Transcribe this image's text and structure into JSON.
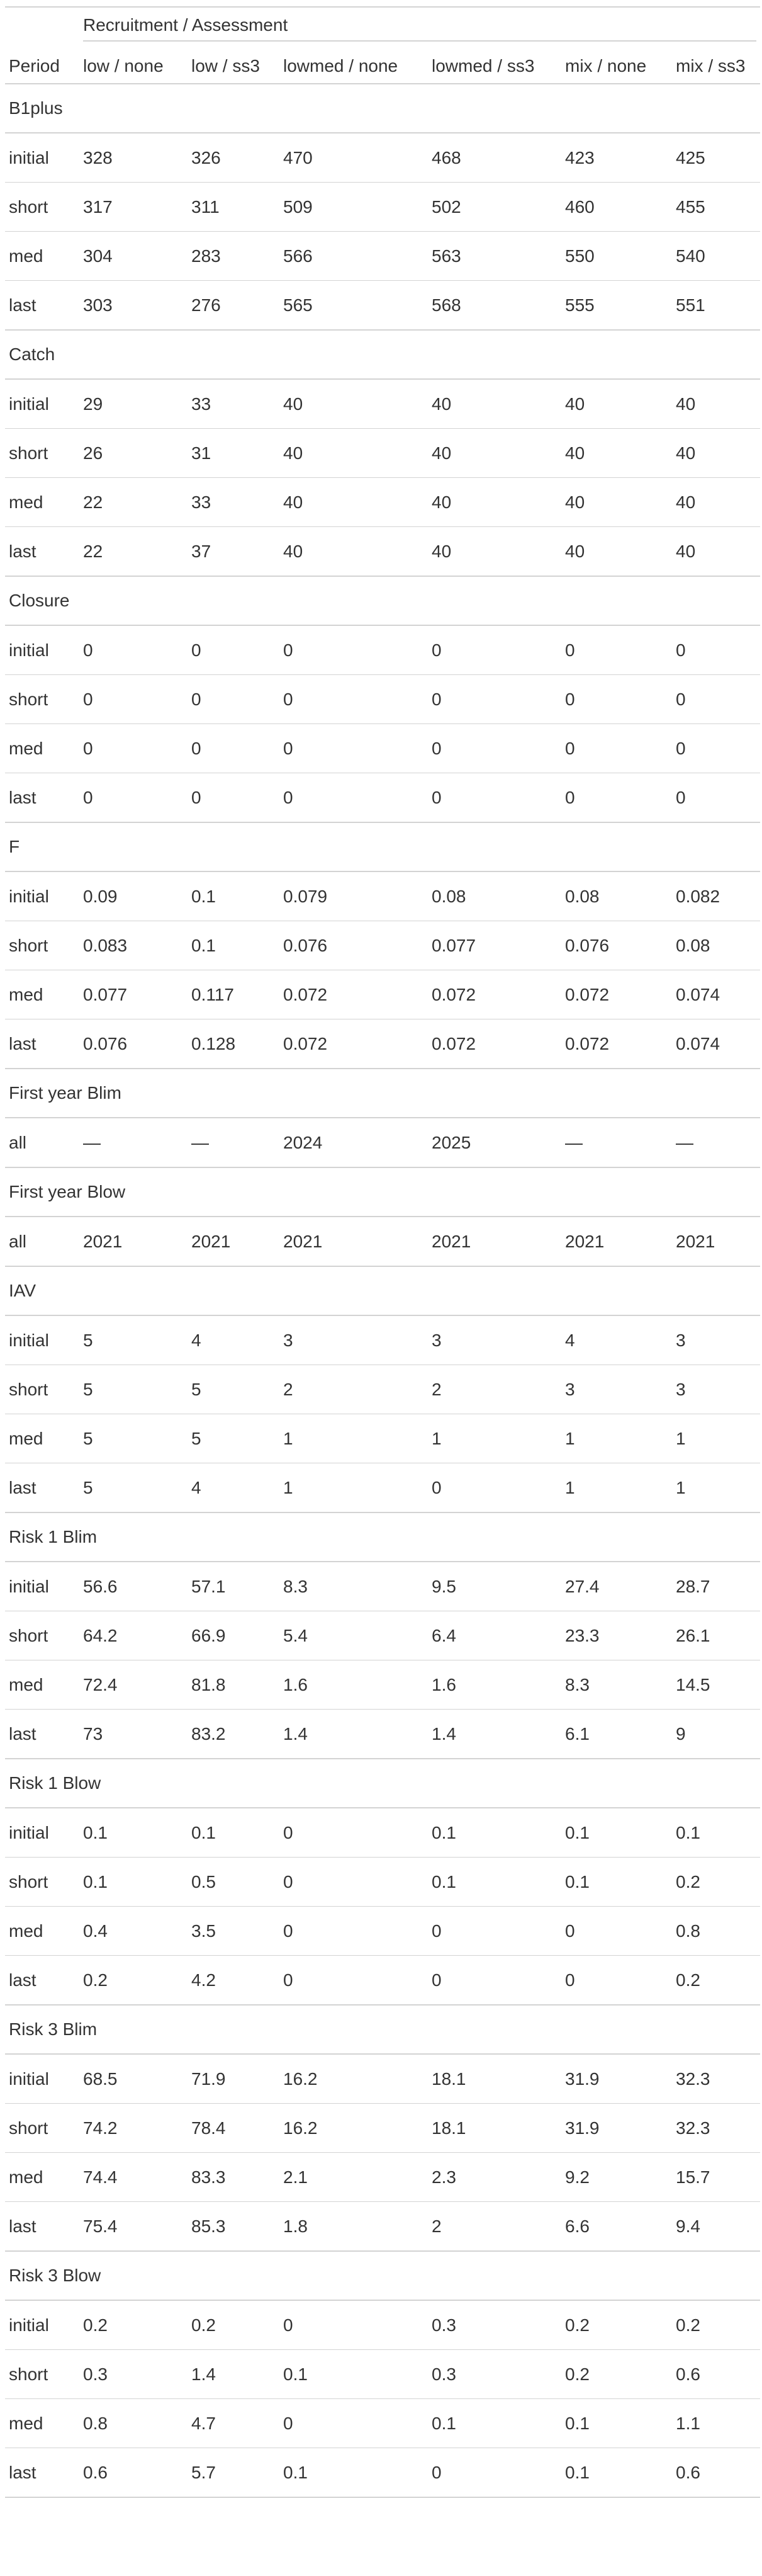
{
  "table": {
    "spanner": "Recruitment / Assessment",
    "stub_header": "Period",
    "columns": [
      "low / none",
      "low / ss3",
      "lowmed / none",
      "lowmed / ss3",
      "mix / none",
      "mix / ss3"
    ],
    "groups": [
      {
        "name": "B1plus",
        "rows": [
          {
            "label": "initial",
            "values": [
              "328",
              "326",
              "470",
              "468",
              "423",
              "425"
            ]
          },
          {
            "label": "short",
            "values": [
              "317",
              "311",
              "509",
              "502",
              "460",
              "455"
            ]
          },
          {
            "label": "med",
            "values": [
              "304",
              "283",
              "566",
              "563",
              "550",
              "540"
            ]
          },
          {
            "label": "last",
            "values": [
              "303",
              "276",
              "565",
              "568",
              "555",
              "551"
            ]
          }
        ]
      },
      {
        "name": "Catch",
        "rows": [
          {
            "label": "initial",
            "values": [
              "29",
              "33",
              "40",
              "40",
              "40",
              "40"
            ]
          },
          {
            "label": "short",
            "values": [
              "26",
              "31",
              "40",
              "40",
              "40",
              "40"
            ]
          },
          {
            "label": "med",
            "values": [
              "22",
              "33",
              "40",
              "40",
              "40",
              "40"
            ]
          },
          {
            "label": "last",
            "values": [
              "22",
              "37",
              "40",
              "40",
              "40",
              "40"
            ]
          }
        ]
      },
      {
        "name": "Closure",
        "rows": [
          {
            "label": "initial",
            "values": [
              "0",
              "0",
              "0",
              "0",
              "0",
              "0"
            ]
          },
          {
            "label": "short",
            "values": [
              "0",
              "0",
              "0",
              "0",
              "0",
              "0"
            ]
          },
          {
            "label": "med",
            "values": [
              "0",
              "0",
              "0",
              "0",
              "0",
              "0"
            ]
          },
          {
            "label": "last",
            "values": [
              "0",
              "0",
              "0",
              "0",
              "0",
              "0"
            ]
          }
        ]
      },
      {
        "name": "F",
        "rows": [
          {
            "label": "initial",
            "values": [
              "0.09",
              "0.1",
              "0.079",
              "0.08",
              "0.08",
              "0.082"
            ]
          },
          {
            "label": "short",
            "values": [
              "0.083",
              "0.1",
              "0.076",
              "0.077",
              "0.076",
              "0.08"
            ]
          },
          {
            "label": "med",
            "values": [
              "0.077",
              "0.117",
              "0.072",
              "0.072",
              "0.072",
              "0.074"
            ]
          },
          {
            "label": "last",
            "values": [
              "0.076",
              "0.128",
              "0.072",
              "0.072",
              "0.072",
              "0.074"
            ]
          }
        ]
      },
      {
        "name": "First year Blim",
        "rows": [
          {
            "label": "all",
            "values": [
              "—",
              "—",
              "2024",
              "2025",
              "—",
              "—"
            ]
          }
        ]
      },
      {
        "name": "First year Blow",
        "rows": [
          {
            "label": "all",
            "values": [
              "2021",
              "2021",
              "2021",
              "2021",
              "2021",
              "2021"
            ]
          }
        ]
      },
      {
        "name": "IAV",
        "rows": [
          {
            "label": "initial",
            "values": [
              "5",
              "4",
              "3",
              "3",
              "4",
              "3"
            ]
          },
          {
            "label": "short",
            "values": [
              "5",
              "5",
              "2",
              "2",
              "3",
              "3"
            ]
          },
          {
            "label": "med",
            "values": [
              "5",
              "5",
              "1",
              "1",
              "1",
              "1"
            ]
          },
          {
            "label": "last",
            "values": [
              "5",
              "4",
              "1",
              "0",
              "1",
              "1"
            ]
          }
        ]
      },
      {
        "name": "Risk 1 Blim",
        "rows": [
          {
            "label": "initial",
            "values": [
              "56.6",
              "57.1",
              "8.3",
              "9.5",
              "27.4",
              "28.7"
            ]
          },
          {
            "label": "short",
            "values": [
              "64.2",
              "66.9",
              "5.4",
              "6.4",
              "23.3",
              "26.1"
            ]
          },
          {
            "label": "med",
            "values": [
              "72.4",
              "81.8",
              "1.6",
              "1.6",
              "8.3",
              "14.5"
            ]
          },
          {
            "label": "last",
            "values": [
              "73",
              "83.2",
              "1.4",
              "1.4",
              "6.1",
              "9"
            ]
          }
        ]
      },
      {
        "name": "Risk 1 Blow",
        "rows": [
          {
            "label": "initial",
            "values": [
              "0.1",
              "0.1",
              "0",
              "0.1",
              "0.1",
              "0.1"
            ]
          },
          {
            "label": "short",
            "values": [
              "0.1",
              "0.5",
              "0",
              "0.1",
              "0.1",
              "0.2"
            ]
          },
          {
            "label": "med",
            "values": [
              "0.4",
              "3.5",
              "0",
              "0",
              "0",
              "0.8"
            ]
          },
          {
            "label": "last",
            "values": [
              "0.2",
              "4.2",
              "0",
              "0",
              "0",
              "0.2"
            ]
          }
        ]
      },
      {
        "name": "Risk 3 Blim",
        "rows": [
          {
            "label": "initial",
            "values": [
              "68.5",
              "71.9",
              "16.2",
              "18.1",
              "31.9",
              "32.3"
            ]
          },
          {
            "label": "short",
            "values": [
              "74.2",
              "78.4",
              "16.2",
              "18.1",
              "31.9",
              "32.3"
            ]
          },
          {
            "label": "med",
            "values": [
              "74.4",
              "83.3",
              "2.1",
              "2.3",
              "9.2",
              "15.7"
            ]
          },
          {
            "label": "last",
            "values": [
              "75.4",
              "85.3",
              "1.8",
              "2",
              "6.6",
              "9.4"
            ]
          }
        ]
      },
      {
        "name": "Risk 3 Blow",
        "rows": [
          {
            "label": "initial",
            "values": [
              "0.2",
              "0.2",
              "0",
              "0.3",
              "0.2",
              "0.2"
            ]
          },
          {
            "label": "short",
            "values": [
              "0.3",
              "1.4",
              "0.1",
              "0.3",
              "0.2",
              "0.6"
            ]
          },
          {
            "label": "med",
            "values": [
              "0.8",
              "4.7",
              "0",
              "0.1",
              "0.1",
              "1.1"
            ]
          },
          {
            "label": "last",
            "values": [
              "0.6",
              "5.7",
              "0.1",
              "0",
              "0.1",
              "0.6"
            ]
          }
        ]
      }
    ]
  }
}
